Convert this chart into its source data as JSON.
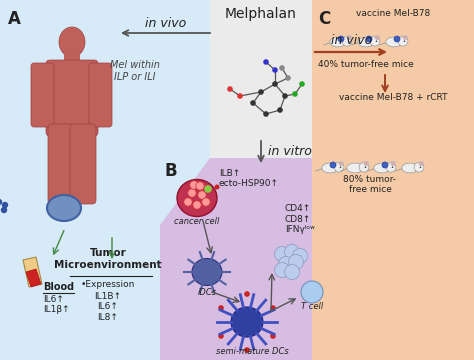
{
  "title": "",
  "bg_color_A": "#d6eaf8",
  "bg_color_B": "#d7bde2",
  "bg_color_C": "#f5cba7",
  "bg_white": "#ffffff",
  "section_A_label": "A",
  "section_B_label": "B",
  "section_C_label": "C",
  "melphalan_title": "Melphalan",
  "in_vivo_left": "in vivo",
  "in_vivo_right": "in vivo",
  "in_vitro_text": "in vitro",
  "mel_within_text": "Mel within\nILP or ILI",
  "blood_label": "Blood",
  "blood_cytokines": "IL6↑\nIL1β↑",
  "tumor_micro_label": "Tumor\nMicroenvironment",
  "tumor_micro_sub": "•Expression",
  "tumor_cytokines": "IL1B↑\nIL6↑\nIL8↑",
  "cancer_cell_label": "cancer cell",
  "ilb_text": "ILB↑",
  "hsp_text": "ecto-HSP90↑",
  "idcs_label": "iDCs",
  "semi_mature_label": "semi-mature DCs",
  "t_cell_label": "T cell",
  "cd_text": "CD4↑\nCD8↑\nIFNγˡᵒʷ",
  "vaccine1_label": "vaccine Mel-B78",
  "vaccine2_label": "vaccine Mel-B78 + rCRT",
  "tumor_free_40": "40% tumor-free mice",
  "tumor_free_80": "80% tumor-\nfree mice",
  "arrow_color": "#555555",
  "arrow_color_brown": "#a04020",
  "text_color": "#222222",
  "label_fontsize": 9,
  "small_fontsize": 7,
  "title_fontsize": 10
}
